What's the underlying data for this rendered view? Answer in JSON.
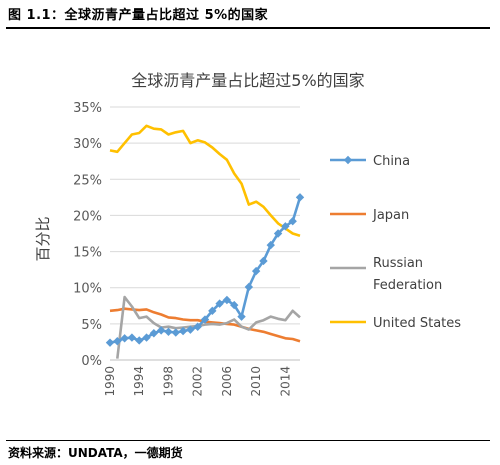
{
  "figure": {
    "label": "图 1.1：全球沥青产量占比超过 5%的国家",
    "source": "资料来源：UNDATA，一德期货"
  },
  "chart_data": {
    "type": "line",
    "title": "全球沥青产量占比超过5%的国家",
    "xlabel": "",
    "ylabel": "百分比",
    "ylim": [
      0,
      35
    ],
    "yticks": [
      "0%",
      "5%",
      "10%",
      "15%",
      "20%",
      "25%",
      "30%",
      "35%"
    ],
    "xticks": [
      "1990",
      "1994",
      "1998",
      "2002",
      "2006",
      "2010",
      "2014"
    ],
    "x": [
      1990,
      1991,
      1992,
      1993,
      1994,
      1995,
      1996,
      1997,
      1998,
      1999,
      2000,
      2001,
      2002,
      2003,
      2004,
      2005,
      2006,
      2007,
      2008,
      2009,
      2010,
      2011,
      2012,
      2013,
      2014,
      2015,
      2016
    ],
    "grid": true,
    "legend_position": "right",
    "series": [
      {
        "name": "China",
        "color": "#5B9BD5",
        "marker": "diamond",
        "values": [
          2.4,
          2.6,
          3.0,
          3.1,
          2.7,
          3.1,
          3.7,
          4.1,
          3.9,
          3.8,
          4.0,
          4.2,
          4.6,
          5.6,
          6.8,
          7.8,
          8.3,
          7.6,
          6.0,
          10.1,
          12.3,
          13.7,
          15.9,
          17.5,
          18.5,
          19.2,
          22.5
        ]
      },
      {
        "name": "Japan",
        "color": "#ED7D31",
        "values": [
          6.8,
          6.9,
          7.1,
          7.0,
          6.9,
          7.0,
          6.6,
          6.3,
          5.9,
          5.8,
          5.6,
          5.5,
          5.5,
          5.3,
          5.2,
          5.1,
          5.0,
          4.9,
          4.6,
          4.3,
          4.1,
          3.9,
          3.6,
          3.3,
          3.0,
          2.9,
          2.6
        ]
      },
      {
        "name": "Russian Federation",
        "color": "#A5A5A5",
        "values": [
          null,
          0.2,
          8.7,
          7.4,
          5.8,
          6.0,
          5.1,
          4.5,
          4.6,
          4.4,
          4.5,
          4.6,
          4.7,
          4.9,
          5.0,
          4.9,
          5.1,
          5.6,
          4.6,
          4.2,
          5.2,
          5.5,
          6.0,
          5.7,
          5.5,
          6.8,
          5.9
        ]
      },
      {
        "name": "United States",
        "color": "#FFC000",
        "values": [
          29.0,
          28.8,
          30.0,
          31.2,
          31.4,
          32.4,
          32.0,
          31.9,
          31.2,
          31.5,
          31.7,
          30.0,
          30.4,
          30.1,
          29.4,
          28.5,
          27.7,
          25.8,
          24.4,
          21.5,
          21.9,
          21.2,
          20.0,
          18.9,
          18.2,
          17.5,
          17.2
        ]
      }
    ]
  }
}
